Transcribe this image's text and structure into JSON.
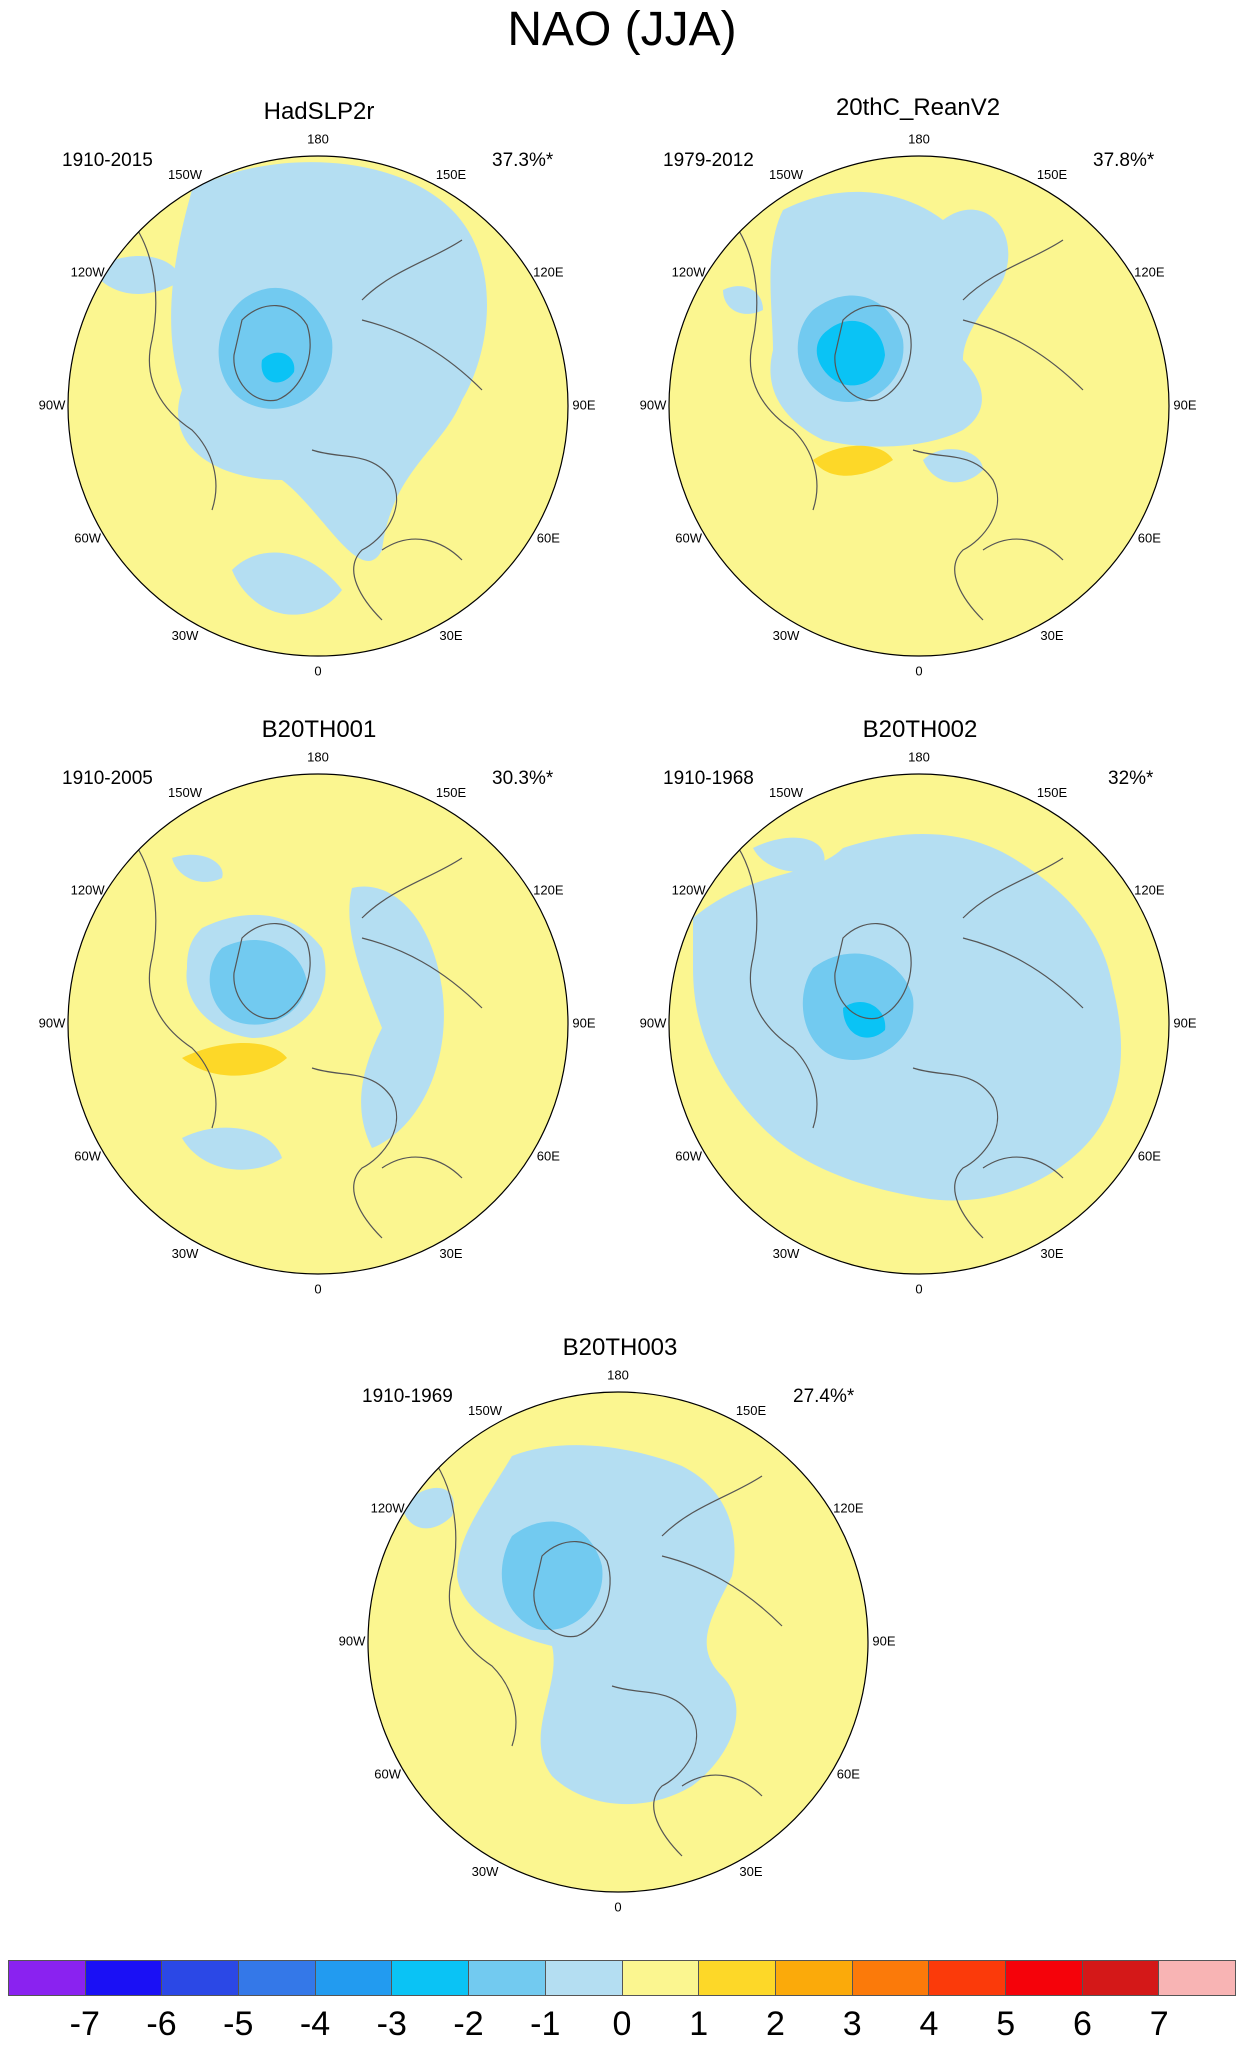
{
  "title": "NAO (JJA)",
  "lon_labels": [
    "180",
    "150E",
    "120E",
    "90E",
    "60E",
    "30E",
    "0",
    "30W",
    "60W",
    "90W",
    "120W",
    "150W"
  ],
  "panels": [
    {
      "name": "HadSLP2r",
      "period": "1910-2015",
      "variance": "37.3%*"
    },
    {
      "name": "20thC_ReanV2",
      "period": "1979-2012",
      "variance": "37.8%*"
    },
    {
      "name": "B20TH001",
      "period": "1910-2005",
      "variance": "30.3%*"
    },
    {
      "name": "B20TH002",
      "period": "1910-1968",
      "variance": "32%*"
    },
    {
      "name": "B20TH003",
      "period": "1910-1969",
      "variance": "27.4%*"
    }
  ],
  "colorbar": {
    "colors": [
      "#8a22f0",
      "#1a10f5",
      "#2b48e6",
      "#3478e8",
      "#229bf0",
      "#0ac3f5",
      "#72caf0",
      "#b4def2",
      "#fbf690",
      "#fdd828",
      "#fbaa0a",
      "#fb7a0a",
      "#fb3a0a",
      "#f5020a",
      "#d41818",
      "#f8b4b4"
    ],
    "labels": [
      "-7",
      "-6",
      "-5",
      "-4",
      "-3",
      "-2",
      "-1",
      "0",
      "1",
      "2",
      "3",
      "4",
      "5",
      "6",
      "7"
    ]
  },
  "palette": {
    "yellow": "#fbf690",
    "light_blue": "#b4def2",
    "mid_blue": "#72caf0",
    "blue": "#0ac3f5",
    "orange": "#fdd828",
    "coast": "#555555"
  }
}
